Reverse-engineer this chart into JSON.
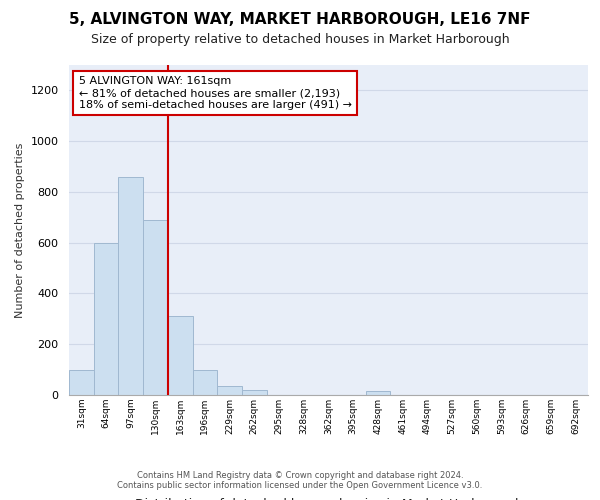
{
  "title": "5, ALVINGTON WAY, MARKET HARBOROUGH, LE16 7NF",
  "subtitle": "Size of property relative to detached houses in Market Harborough",
  "xlabel": "Distribution of detached houses by size in Market Harborough",
  "ylabel": "Number of detached properties",
  "categories": [
    "31sqm",
    "64sqm",
    "97sqm",
    "130sqm",
    "163sqm",
    "196sqm",
    "229sqm",
    "262sqm",
    "295sqm",
    "328sqm",
    "362sqm",
    "395sqm",
    "428sqm",
    "461sqm",
    "494sqm",
    "527sqm",
    "560sqm",
    "593sqm",
    "626sqm",
    "659sqm",
    "692sqm"
  ],
  "values": [
    100,
    600,
    860,
    690,
    310,
    100,
    35,
    20,
    0,
    0,
    0,
    0,
    15,
    0,
    0,
    0,
    0,
    0,
    0,
    0,
    0
  ],
  "bar_color": "#ccdff0",
  "bar_edge_color": "#a0b8d0",
  "vline_color": "#cc0000",
  "vline_index": 4,
  "annotation_line1": "5 ALVINGTON WAY: 161sqm",
  "annotation_line2": "← 81% of detached houses are smaller (2,193)",
  "annotation_line3": "18% of semi-detached houses are larger (491) →",
  "ylim": [
    0,
    1300
  ],
  "yticks": [
    0,
    200,
    400,
    600,
    800,
    1000,
    1200
  ],
  "grid_color": "#d0d8e8",
  "bg_color": "#e8eef8",
  "footer_line1": "Contains HM Land Registry data © Crown copyright and database right 2024.",
  "footer_line2": "Contains public sector information licensed under the Open Government Licence v3.0."
}
